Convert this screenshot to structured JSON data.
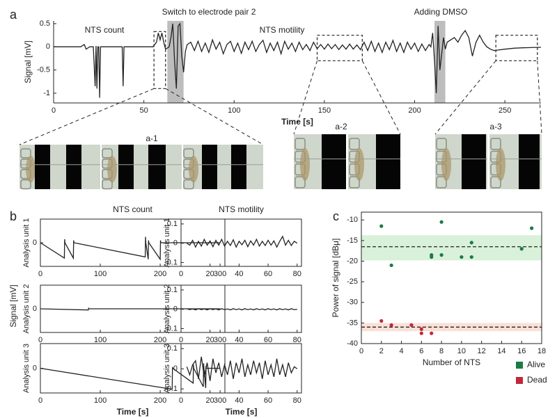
{
  "insets": [
    "a-1",
    "a-2",
    "a-3"
  ],
  "panel_b_ylabel": "Signal [mV]",
  "chart_data": [
    {
      "type": "line",
      "panel_label": "a",
      "xlabel": "Time [s]",
      "ylabel": "Signal [mV]",
      "annotations": [
        "NTS count",
        "Switch to electrode pair 2",
        "NTS motility",
        "Adding DMSO"
      ],
      "color": "#222222",
      "xlim": [
        0,
        270
      ],
      "ylim": [
        -1.21,
        0.56
      ],
      "xticks": [
        0,
        50,
        100,
        150,
        200,
        250
      ],
      "yticks": [
        -1,
        -0.5,
        0,
        0.5
      ],
      "highlight_spans": [
        [
          63,
          72
        ],
        [
          211,
          217
        ]
      ],
      "zoom_boxes": [
        {
          "x": [
            55.6,
            62
          ],
          "y": [
            -0.9,
            0.33
          ]
        },
        {
          "x": [
            146,
            171
          ],
          "y": [
            -0.3,
            0.25
          ]
        },
        {
          "x": [
            245,
            268
          ],
          "y": [
            -0.3,
            0.25
          ]
        }
      ],
      "x": [
        0,
        15,
        17,
        18,
        20,
        22,
        23,
        23.5,
        24,
        24.5,
        25,
        25.5,
        26,
        28,
        37,
        38,
        38.5,
        39,
        40,
        55,
        57,
        58,
        59,
        60,
        61,
        62,
        64,
        65,
        66,
        67,
        68,
        69,
        70,
        71,
        72,
        73,
        74,
        76,
        78,
        80,
        82,
        84,
        86,
        88,
        90,
        92,
        94,
        96,
        98,
        100,
        102,
        104,
        106,
        108,
        110,
        112,
        114,
        116,
        118,
        120,
        122,
        124,
        126,
        128,
        130,
        132,
        134,
        136,
        138,
        140,
        142,
        144,
        146,
        148,
        150,
        152,
        154,
        156,
        158,
        160,
        162,
        164,
        166,
        168,
        170,
        172,
        174,
        176,
        178,
        180,
        182,
        184,
        186,
        188,
        190,
        192,
        194,
        196,
        198,
        200,
        202,
        204,
        206,
        208,
        209,
        210,
        211,
        212,
        213,
        214,
        215,
        216,
        217,
        218,
        220,
        222,
        224,
        226,
        228,
        230,
        232,
        234,
        236,
        238,
        240,
        242,
        244,
        246,
        250,
        255,
        260,
        270
      ],
      "values": [
        0,
        0,
        0.05,
        -0.05,
        0,
        0,
        -0.85,
        0.02,
        -0.9,
        0,
        0,
        -1.1,
        0,
        0,
        0,
        0,
        -0.85,
        0,
        0,
        0,
        0.1,
        0.3,
        0.15,
        0.3,
        0.1,
        -0.05,
        0,
        0.2,
        0.5,
        -0.3,
        -0.9,
        0.45,
        0.5,
        -0.2,
        -0.55,
        -0.1,
        0.05,
        0.1,
        -0.08,
        0.12,
        -0.1,
        0.08,
        -0.12,
        0.15,
        -0.05,
        0.1,
        -0.15,
        0.05,
        0.12,
        -0.1,
        0.08,
        -0.14,
        0.1,
        -0.06,
        0.12,
        -0.1,
        0.05,
        0.14,
        -0.12,
        0.08,
        -0.08,
        0.1,
        -0.15,
        0.12,
        -0.05,
        0.08,
        -0.1,
        0.1,
        -0.06,
        0.05,
        -0.08,
        0.1,
        -0.04,
        0.05,
        -0.05,
        0.06,
        -0.04,
        0.05,
        -0.06,
        0.04,
        -0.05,
        0.06,
        -0.05,
        0.04,
        -0.06,
        0.1,
        -0.08,
        0.12,
        -0.1,
        0.08,
        -0.12,
        0.1,
        -0.06,
        0.14,
        -0.1,
        0.08,
        -0.12,
        0.1,
        -0.05,
        0.08,
        -0.1,
        0.06,
        -0.08,
        0.05,
        0,
        0.3,
        -0.3,
        -1.0,
        0.45,
        -0.5,
        -0.15,
        0.2,
        -0.05,
        0.1,
        0.15,
        0.2,
        0.1,
        0.25,
        0.35,
        0.2,
        -0.2,
        0.1,
        0.25,
        0.1,
        0,
        -0.05,
        -0.08,
        -0.07,
        -0.05,
        -0.03,
        -0.02,
        -0.01
      ]
    },
    {
      "type": "line",
      "panel_label": "b",
      "title": "NTS count",
      "ylabel": "Analysis unit 1",
      "color": "#222222",
      "xlim": [
        0,
        308
      ],
      "ylim": [
        -1,
        1
      ],
      "xticks": [
        0,
        100,
        200,
        300
      ],
      "yticks": [
        0
      ],
      "x": [
        0,
        40,
        40.5,
        41,
        55,
        55.5,
        56,
        175,
        175.5,
        176,
        180,
        180.5,
        181,
        200,
        200.5,
        201,
        300
      ],
      "values": [
        0,
        -0.65,
        0.15,
        0,
        -0.65,
        0.1,
        0,
        -0.6,
        0.25,
        0,
        -0.7,
        0.1,
        0,
        -0.7,
        0.1,
        0,
        0
      ]
    },
    {
      "type": "line",
      "ylabel": "Analysis unit 2",
      "color": "#222222",
      "xlim": [
        0,
        308
      ],
      "ylim": [
        -1,
        1
      ],
      "xticks": [
        0,
        100,
        200,
        300
      ],
      "yticks": [
        0
      ],
      "x": [
        0,
        80,
        80.5,
        81,
        300
      ],
      "values": [
        0,
        -0.05,
        0.02,
        0,
        0
      ]
    },
    {
      "type": "line",
      "ylabel": "Analysis unit 3",
      "xlabel": "Time [s]",
      "color": "#222222",
      "xlim": [
        0,
        308
      ],
      "ylim": [
        -1,
        1
      ],
      "xticks": [
        0,
        100,
        200,
        300
      ],
      "yticks": [
        0
      ],
      "x": [
        0,
        220,
        220.5,
        221,
        255,
        255.5,
        256,
        272,
        272.5,
        273,
        276,
        276.5,
        277,
        300
      ],
      "values": [
        0,
        -0.85,
        0.05,
        0,
        -0.6,
        0.15,
        0,
        -0.75,
        0.2,
        0,
        -0.8,
        0.1,
        0,
        0
      ]
    },
    {
      "type": "line",
      "title": "NTS motility",
      "ylabel": "Analysis unit 1",
      "color": "#222222",
      "xlim": [
        0,
        83
      ],
      "ylim": [
        -0.12,
        0.125
      ],
      "xticks": [
        0,
        20,
        40,
        60,
        80
      ],
      "yticks": [
        -0.1,
        0,
        0.1
      ],
      "x": [
        4,
        6,
        8,
        10,
        12,
        14,
        16,
        18,
        20,
        22,
        24,
        26,
        28,
        30,
        32,
        34,
        36,
        38,
        40,
        42,
        44,
        46,
        48,
        50,
        52,
        54,
        56,
        58,
        60,
        62,
        64,
        66,
        68,
        70,
        72,
        74,
        76,
        78,
        80
      ],
      "values": [
        0,
        -0.01,
        0.015,
        -0.02,
        0.01,
        -0.015,
        0.02,
        -0.01,
        0.012,
        -0.018,
        0.015,
        -0.01,
        0.02,
        -0.015,
        0.01,
        -0.012,
        0.018,
        -0.02,
        0.01,
        -0.008,
        0.015,
        -0.018,
        0.012,
        -0.01,
        0.02,
        -0.015,
        0.01,
        -0.012,
        0.015,
        -0.01,
        0.012,
        -0.02,
        0.01,
        0.035,
        -0.01,
        0.015,
        -0.012,
        0.01,
        0
      ]
    },
    {
      "type": "line",
      "ylabel": "Analysis unit 2",
      "color": "#222222",
      "xlim": [
        0,
        83
      ],
      "ylim": [
        -0.12,
        0.125
      ],
      "xticks": [
        0,
        20,
        40,
        60,
        80
      ],
      "yticks": [
        -0.1,
        0,
        0.1
      ],
      "x": [
        4,
        6,
        8,
        10,
        12,
        14,
        16,
        18,
        20,
        22,
        24,
        26,
        28,
        30,
        32,
        34,
        36,
        38,
        40,
        42,
        44,
        46,
        48,
        50,
        52,
        54,
        56,
        58,
        60,
        62,
        64,
        66,
        68,
        70,
        72,
        74,
        76,
        78,
        80
      ],
      "values": [
        0.003,
        -0.002,
        0.002,
        -0.003,
        0.003,
        -0.002,
        0.002,
        -0.003,
        0.003,
        -0.002,
        0.002,
        -0.003,
        0.003,
        -0.002,
        0.002,
        -0.003,
        0.003,
        -0.002,
        0.002,
        -0.003,
        0.003,
        -0.002,
        0.002,
        -0.003,
        0.003,
        -0.002,
        0.002,
        -0.003,
        0.003,
        -0.002,
        0.002,
        -0.003,
        0.003,
        -0.002,
        0.002,
        -0.003,
        0.003,
        -0.002,
        0
      ]
    },
    {
      "type": "line",
      "ylabel": "Analysis unit 3",
      "xlabel": "Time [s]",
      "color": "#222222",
      "xlim": [
        0,
        83
      ],
      "ylim": [
        -0.12,
        0.125
      ],
      "xticks": [
        0,
        20,
        40,
        60,
        80
      ],
      "yticks": [
        -0.1,
        0,
        0.1
      ],
      "x": [
        4,
        6,
        8,
        10,
        12,
        14,
        16,
        18,
        20,
        22,
        24,
        26,
        28,
        30,
        32,
        34,
        36,
        38,
        40,
        42,
        44,
        46,
        48,
        50,
        52,
        54,
        56,
        58,
        60,
        62,
        64,
        66,
        68,
        70,
        72,
        74,
        76,
        78,
        80
      ],
      "values": [
        0.01,
        -0.03,
        0.02,
        0.04,
        -0.05,
        0.06,
        -0.04,
        0.03,
        -0.06,
        0.05,
        -0.02,
        0.03,
        -0.04,
        0.02,
        -0.03,
        0.04,
        -0.05,
        0.03,
        -0.02,
        0.05,
        -0.04,
        0.02,
        -0.03,
        0.04,
        -0.02,
        0.03,
        -0.05,
        0.04,
        -0.03,
        0.02,
        -0.04,
        0.05,
        -0.03,
        0.02,
        -0.04,
        0.03,
        -0.02,
        0.01,
        0
      ]
    },
    {
      "type": "scatter",
      "panel_label": "c",
      "xlabel": "Number of NTS",
      "ylabel": "Power of signal [dBμ]",
      "xlim": [
        0,
        18
      ],
      "ylim": [
        -40,
        -8.1
      ],
      "xticks": [
        0,
        2,
        4,
        6,
        8,
        10,
        12,
        14,
        16,
        18
      ],
      "yticks": [
        -10,
        -15,
        -20,
        -25,
        -30,
        -35,
        -40
      ],
      "series": [
        {
          "name": "Alive",
          "color": "#1b7a45",
          "band_color": "#d9f0d9",
          "mean": -16.5,
          "band": [
            -19.8,
            -13.7
          ],
          "x": [
            2,
            3,
            7,
            7,
            8,
            8,
            10,
            11,
            11,
            16,
            17
          ],
          "values": [
            -11.5,
            -21,
            -18.5,
            -19,
            -10.5,
            -18.5,
            -19,
            -15.5,
            -19,
            -17,
            -12
          ]
        },
        {
          "name": "Dead",
          "color": "#c0283a",
          "band_color": "#fbe0d6",
          "mean": -36,
          "band": [
            -37,
            -35
          ],
          "x": [
            2,
            3,
            5,
            6,
            6,
            7
          ],
          "values": [
            -34.5,
            -35.5,
            -35.5,
            -36.5,
            -37.5,
            -37.5
          ]
        }
      ]
    }
  ]
}
